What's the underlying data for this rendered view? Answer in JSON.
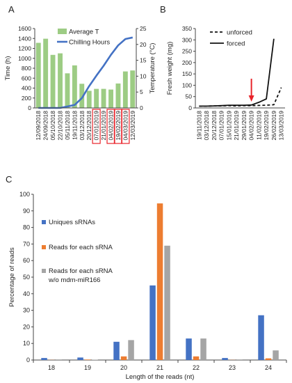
{
  "panels": {
    "a": "A",
    "b": "B",
    "c": "C"
  },
  "chart_data": [
    {
      "id": "A",
      "type": "bar+line",
      "title": "",
      "ylabel": "Time (h)",
      "ylim": [
        0,
        1600
      ],
      "yticks": [
        0,
        200,
        400,
        600,
        800,
        1000,
        1200,
        1400,
        1600
      ],
      "y2label": "Temperature (°C)",
      "y2lim": [
        0,
        25
      ],
      "y2ticks": [
        0,
        5,
        10,
        15,
        20,
        25
      ],
      "categories": [
        "12/09/2018",
        "24/09/2018",
        "05/10/2018",
        "22/10/2018",
        "05/11/2018",
        "19/11/2018",
        "03/12/2018",
        "20/12/2018",
        "07/01/2019",
        "21/01/2019",
        "04/02/2019",
        "19/02/2019",
        "04/03/2019",
        "12/03/2019"
      ],
      "highlighted_categories": [
        "07/01/2019",
        "04/02/2019",
        "19/02/2019",
        "04/03/2019"
      ],
      "highlight_color": "#e8232a",
      "legend": "top-left",
      "series": [
        {
          "name": "Average T",
          "kind": "bar",
          "axis": "right",
          "color": "#9dcc84",
          "values": [
            20.5,
            21.8,
            16.7,
            17.2,
            10.9,
            13.4,
            7.6,
            5.4,
            6.0,
            6.0,
            5.8,
            7.7,
            11.5,
            11.8
          ]
        },
        {
          "name": "Chilling Hours",
          "kind": "line",
          "axis": "left",
          "color": "#4472c4",
          "values": [
            0,
            0,
            0,
            0,
            30,
            60,
            200,
            440,
            650,
            850,
            1070,
            1260,
            1390,
            1420
          ]
        }
      ]
    },
    {
      "id": "B",
      "type": "line",
      "title": "",
      "ylabel": "Fresh weight (mg)",
      "ylim": [
        0,
        350
      ],
      "yticks": [
        0,
        50,
        100,
        150,
        200,
        250,
        300,
        350
      ],
      "categories": [
        "19/11/2018",
        "03/12/2018",
        "20/12/2018",
        "07/01/2019",
        "15/01/2019",
        "21/01/2019",
        "29/01/2019",
        "04/02/2019",
        "11/02/2019",
        "19/02/2019",
        "26/02/2019",
        "13/03/2019"
      ],
      "arrow_at": "04/02/2019",
      "arrow_color": "#e8232a",
      "legend": "top-right",
      "series": [
        {
          "name": "unforced",
          "style": "dashed",
          "values": [
            8,
            8,
            9,
            9,
            10,
            9,
            10,
            10,
            11,
            12,
            14,
            90
          ]
        },
        {
          "name": "forced",
          "style": "solid",
          "values": [
            8,
            8,
            9,
            10,
            12,
            12,
            12,
            13,
            25,
            40,
            305,
            null
          ]
        }
      ]
    },
    {
      "id": "C",
      "type": "bar",
      "title": "",
      "xlabel": "Length of the reads (nt)",
      "ylabel": "Percentage of reads",
      "ylim": [
        0,
        100
      ],
      "yticks": [
        0,
        10,
        20,
        30,
        40,
        50,
        60,
        70,
        80,
        90,
        100
      ],
      "categories": [
        "18",
        "19",
        "20",
        "21",
        "22",
        "23",
        "24"
      ],
      "legend": "top-left",
      "series": [
        {
          "name": "Uniques sRNAs",
          "color": "#4472c4",
          "values": [
            1.2,
            1.5,
            11,
            45,
            13,
            1.2,
            27
          ]
        },
        {
          "name": "Reads for each sRNA",
          "color": "#ed7d31",
          "values": [
            0.1,
            0.3,
            2.2,
            94.5,
            2.2,
            0.1,
            1.0
          ]
        },
        {
          "name": "Reads for each sRNA w/o mdm-miR166",
          "color": "#a5a5a5",
          "values": [
            0.1,
            0.2,
            12,
            69,
            13,
            0.1,
            5.8
          ]
        }
      ]
    }
  ]
}
